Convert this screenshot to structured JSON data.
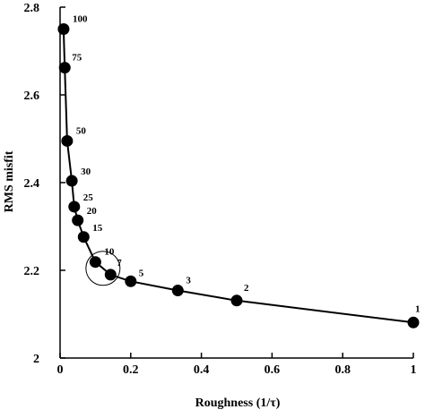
{
  "chart_data": {
    "type": "line",
    "title": "",
    "xlabel": "Roughness (1/τ)",
    "ylabel": "RMS misfit",
    "xlim": [
      0,
      1
    ],
    "ylim": [
      2,
      2.8
    ],
    "xticks": [
      0,
      0.2,
      0.4,
      0.6,
      0.8,
      1
    ],
    "xtick_labels": [
      "0",
      "0.2",
      "0.4",
      "0.6",
      "0.8",
      "1"
    ],
    "yticks": [
      2,
      2.2,
      2.4,
      2.6,
      2.8
    ],
    "ytick_labels": [
      "2",
      "2.2",
      "2.4",
      "2.6",
      "2.8"
    ],
    "grid": false,
    "series": [
      {
        "color": "#000000",
        "points": [
          {
            "tau": "100",
            "x": 0.01,
            "y": 2.75
          },
          {
            "tau": "75",
            "x": 0.0133,
            "y": 2.662
          },
          {
            "tau": "50",
            "x": 0.02,
            "y": 2.495
          },
          {
            "tau": "30",
            "x": 0.0333,
            "y": 2.404
          },
          {
            "tau": "25",
            "x": 0.04,
            "y": 2.345
          },
          {
            "tau": "20",
            "x": 0.05,
            "y": 2.314
          },
          {
            "tau": "15",
            "x": 0.0667,
            "y": 2.276
          },
          {
            "tau": "10",
            "x": 0.1,
            "y": 2.219
          },
          {
            "tau": "7",
            "x": 0.1429,
            "y": 2.19
          },
          {
            "tau": "5",
            "x": 0.2,
            "y": 2.175
          },
          {
            "tau": "3",
            "x": 0.3333,
            "y": 2.154
          },
          {
            "tau": "2",
            "x": 0.5,
            "y": 2.131
          },
          {
            "tau": "1",
            "x": 1.0,
            "y": 2.081
          }
        ]
      }
    ],
    "annotation": {
      "type": "circle",
      "around_tau": [
        "10",
        "7"
      ]
    }
  }
}
